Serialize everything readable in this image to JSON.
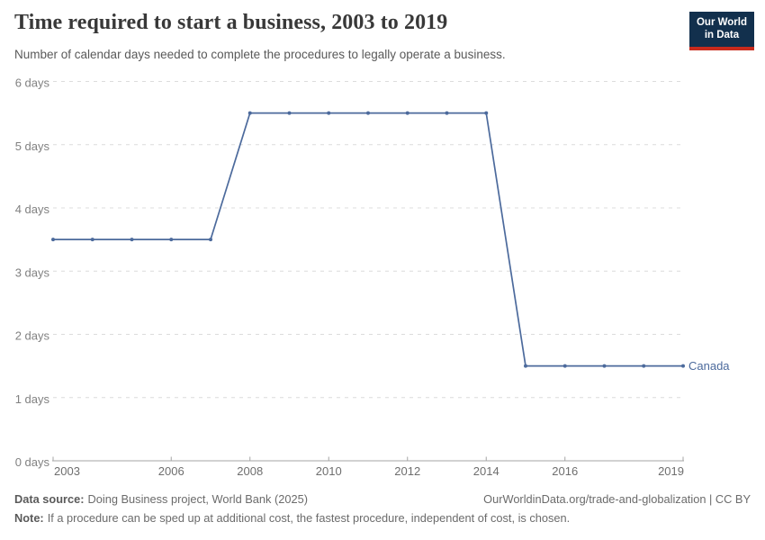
{
  "logo": {
    "line1": "Our World",
    "line2": "in Data",
    "background": "#12304d",
    "accent": "#c82a1c"
  },
  "chart_data": {
    "type": "line",
    "title": "Time required to start a business, 2003 to 2019",
    "subtitle": "Number of calendar days needed to complete the procedures to legally operate a business.",
    "x": [
      2003,
      2004,
      2005,
      2006,
      2007,
      2008,
      2009,
      2010,
      2011,
      2012,
      2013,
      2014,
      2015,
      2016,
      2017,
      2018,
      2019
    ],
    "series": [
      {
        "name": "Canada",
        "color": "#4C6A9C",
        "values": [
          3.5,
          3.5,
          3.5,
          3.5,
          3.5,
          5.5,
          5.5,
          5.5,
          5.5,
          5.5,
          5.5,
          5.5,
          1.5,
          1.5,
          1.5,
          1.5,
          1.5
        ]
      }
    ],
    "xlim": [
      2003,
      2019
    ],
    "ylim": [
      0,
      6
    ],
    "xticks": [
      2003,
      2006,
      2008,
      2010,
      2012,
      2014,
      2016,
      2019
    ],
    "yticks": [
      {
        "value": 0,
        "label": "0 days"
      },
      {
        "value": 1,
        "label": "1 days"
      },
      {
        "value": 2,
        "label": "2 days"
      },
      {
        "value": 3,
        "label": "3 days"
      },
      {
        "value": 4,
        "label": "4 days"
      },
      {
        "value": 5,
        "label": "5 days"
      },
      {
        "value": 6,
        "label": "6 days"
      }
    ],
    "grid": "horizontal-dashed",
    "legend_position": "line-end",
    "colors": {
      "grid": "#dcdcdc",
      "axis": "#a5a5a5",
      "xtick_label": "#6e6e6e",
      "ytick_label": "#818181"
    }
  },
  "footer": {
    "datasource_label": "Data source:",
    "datasource_text": "Doing Business project, World Bank (2025)",
    "link_text": "OurWorldinData.org/trade-and-globalization | CC BY",
    "note_label": "Note:",
    "note_text": "If a procedure can be sped up at additional cost, the fastest procedure, independent of cost, is chosen."
  }
}
